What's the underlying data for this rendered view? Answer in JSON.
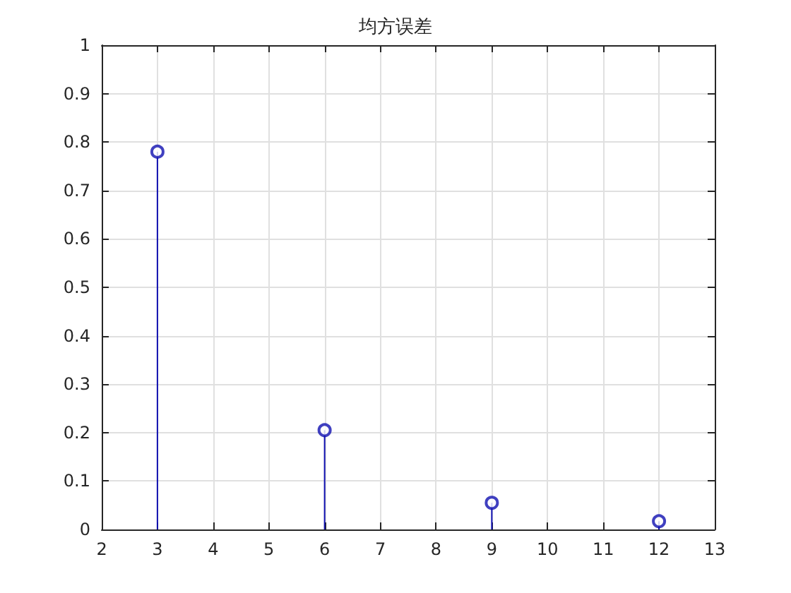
{
  "chart_data": {
    "type": "lollipop",
    "title": "均方误差",
    "x": [
      3,
      6,
      9,
      12
    ],
    "values": [
      0.78,
      0.205,
      0.055,
      0.017
    ],
    "color": "#1010b0",
    "marker": "circle",
    "grid": true,
    "xlim": [
      2,
      13
    ],
    "xticks": [
      2,
      3,
      4,
      5,
      6,
      7,
      8,
      9,
      10,
      11,
      12,
      13
    ],
    "ylim": [
      0,
      1
    ],
    "yticks": [
      0,
      0.1,
      0.2,
      0.3,
      0.4,
      0.5,
      0.6,
      0.7,
      0.8,
      0.9,
      1
    ]
  }
}
